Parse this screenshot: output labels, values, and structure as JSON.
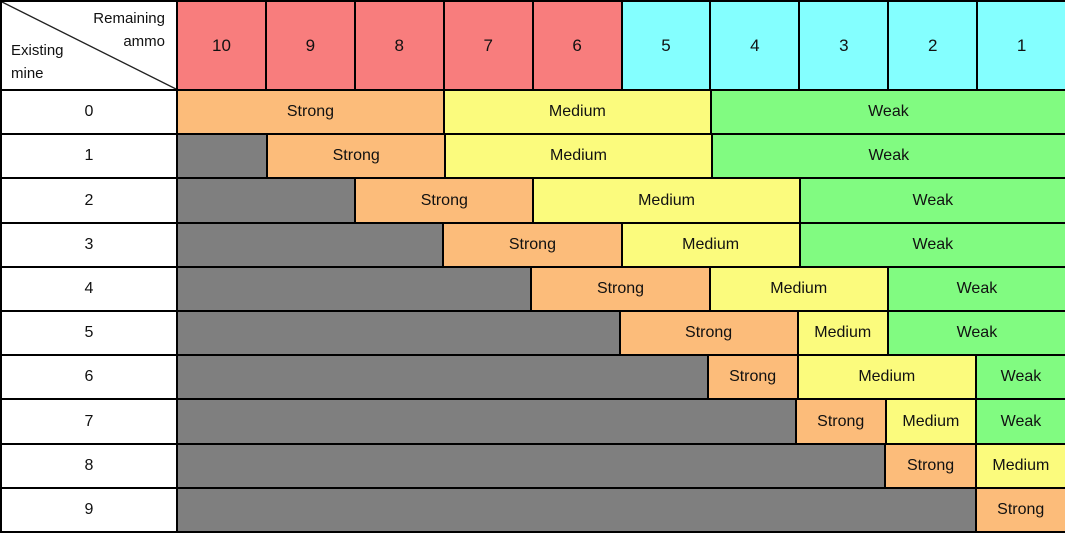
{
  "colors": {
    "high_ammo_header": "#f87d7d",
    "low_ammo_header": "#84ffff",
    "strong": "#fcbc7a",
    "medium": "#fbfb7d",
    "weak": "#81fb81",
    "blocked": "#7f7f7f",
    "row_label_bg": "#ffffff",
    "border": "#000000"
  },
  "header": {
    "corner_top": "Remaining ammo",
    "corner_bottom": "Existing mine"
  },
  "columns": [
    {
      "label": "10",
      "group": "high"
    },
    {
      "label": "9",
      "group": "high"
    },
    {
      "label": "8",
      "group": "high"
    },
    {
      "label": "7",
      "group": "high"
    },
    {
      "label": "6",
      "group": "high"
    },
    {
      "label": "5",
      "group": "low"
    },
    {
      "label": "4",
      "group": "low"
    },
    {
      "label": "3",
      "group": "low"
    },
    {
      "label": "2",
      "group": "low"
    },
    {
      "label": "1",
      "group": "low"
    }
  ],
  "rows": [
    {
      "mine": "0",
      "segments": [
        {
          "type": "strong",
          "label": "Strong",
          "span": 3
        },
        {
          "type": "medium",
          "label": "Medium",
          "span": 3
        },
        {
          "type": "weak",
          "label": "Weak",
          "span": 4
        }
      ]
    },
    {
      "mine": "1",
      "segments": [
        {
          "type": "blocked",
          "label": "",
          "span": 1
        },
        {
          "type": "strong",
          "label": "Strong",
          "span": 2
        },
        {
          "type": "medium",
          "label": "Medium",
          "span": 3
        },
        {
          "type": "weak",
          "label": "Weak",
          "span": 4
        }
      ]
    },
    {
      "mine": "2",
      "segments": [
        {
          "type": "blocked",
          "label": "",
          "span": 2
        },
        {
          "type": "strong",
          "label": "Strong",
          "span": 2
        },
        {
          "type": "medium",
          "label": "Medium",
          "span": 3
        },
        {
          "type": "weak",
          "label": "Weak",
          "span": 3
        }
      ]
    },
    {
      "mine": "3",
      "segments": [
        {
          "type": "blocked",
          "label": "",
          "span": 3
        },
        {
          "type": "strong",
          "label": "Strong",
          "span": 2
        },
        {
          "type": "medium",
          "label": "Medium",
          "span": 2
        },
        {
          "type": "weak",
          "label": "Weak",
          "span": 3
        }
      ]
    },
    {
      "mine": "4",
      "segments": [
        {
          "type": "blocked",
          "label": "",
          "span": 4
        },
        {
          "type": "strong",
          "label": "Strong",
          "span": 2
        },
        {
          "type": "medium",
          "label": "Medium",
          "span": 2
        },
        {
          "type": "weak",
          "label": "Weak",
          "span": 2
        }
      ]
    },
    {
      "mine": "5",
      "segments": [
        {
          "type": "blocked",
          "label": "",
          "span": 5
        },
        {
          "type": "strong",
          "label": "Strong",
          "span": 2
        },
        {
          "type": "medium",
          "label": "Medium",
          "span": 1
        },
        {
          "type": "weak",
          "label": "Weak",
          "span": 2
        }
      ]
    },
    {
      "mine": "6",
      "segments": [
        {
          "type": "blocked",
          "label": "",
          "span": 6
        },
        {
          "type": "strong",
          "label": "Strong",
          "span": 1
        },
        {
          "type": "medium",
          "label": "Medium",
          "span": 2
        },
        {
          "type": "weak",
          "label": "Weak",
          "span": 1
        }
      ]
    },
    {
      "mine": "7",
      "segments": [
        {
          "type": "blocked",
          "label": "",
          "span": 7
        },
        {
          "type": "strong",
          "label": "Strong",
          "span": 1
        },
        {
          "type": "medium",
          "label": "Medium",
          "span": 1
        },
        {
          "type": "weak",
          "label": "Weak",
          "span": 1
        }
      ]
    },
    {
      "mine": "8",
      "segments": [
        {
          "type": "blocked",
          "label": "",
          "span": 8
        },
        {
          "type": "strong",
          "label": "Strong",
          "span": 1
        },
        {
          "type": "medium",
          "label": "Medium",
          "span": 1
        }
      ]
    },
    {
      "mine": "9",
      "segments": [
        {
          "type": "blocked",
          "label": "",
          "span": 9
        },
        {
          "type": "strong",
          "label": "Strong",
          "span": 1
        }
      ]
    }
  ],
  "chart_data": {
    "type": "heatmap",
    "title": "",
    "x_axis_label": "Remaining ammo",
    "y_axis_label": "Existing mine",
    "x_categories": [
      10,
      9,
      8,
      7,
      6,
      5,
      4,
      3,
      2,
      1
    ],
    "y_categories": [
      0,
      1,
      2,
      3,
      4,
      5,
      6,
      7,
      8,
      9
    ],
    "legend_labels": [
      "Strong",
      "Medium",
      "Weak"
    ],
    "x_header_groups": [
      {
        "labels": [
          10,
          9,
          8,
          7,
          6
        ],
        "color": "#f87d7d"
      },
      {
        "labels": [
          5,
          4,
          3,
          2,
          1
        ],
        "color": "#84ffff"
      }
    ],
    "cells": [
      [
        "Strong",
        "Strong",
        "Strong",
        "Medium",
        "Medium",
        "Medium",
        "Weak",
        "Weak",
        "Weak",
        "Weak"
      ],
      [
        "blocked",
        "Strong",
        "Strong",
        "Medium",
        "Medium",
        "Medium",
        "Weak",
        "Weak",
        "Weak",
        "Weak"
      ],
      [
        "blocked",
        "blocked",
        "Strong",
        "Strong",
        "Medium",
        "Medium",
        "Medium",
        "Weak",
        "Weak",
        "Weak"
      ],
      [
        "blocked",
        "blocked",
        "blocked",
        "Strong",
        "Strong",
        "Medium",
        "Medium",
        "Weak",
        "Weak",
        "Weak"
      ],
      [
        "blocked",
        "blocked",
        "blocked",
        "blocked",
        "Strong",
        "Strong",
        "Medium",
        "Medium",
        "Weak",
        "Weak"
      ],
      [
        "blocked",
        "blocked",
        "blocked",
        "blocked",
        "blocked",
        "Strong",
        "Strong",
        "Medium",
        "Weak",
        "Weak"
      ],
      [
        "blocked",
        "blocked",
        "blocked",
        "blocked",
        "blocked",
        "blocked",
        "Strong",
        "Medium",
        "Medium",
        "Weak"
      ],
      [
        "blocked",
        "blocked",
        "blocked",
        "blocked",
        "blocked",
        "blocked",
        "blocked",
        "Strong",
        "Medium",
        "Weak"
      ],
      [
        "blocked",
        "blocked",
        "blocked",
        "blocked",
        "blocked",
        "blocked",
        "blocked",
        "blocked",
        "Strong",
        "Medium"
      ],
      [
        "blocked",
        "blocked",
        "blocked",
        "blocked",
        "blocked",
        "blocked",
        "blocked",
        "blocked",
        "blocked",
        "Strong"
      ]
    ]
  }
}
